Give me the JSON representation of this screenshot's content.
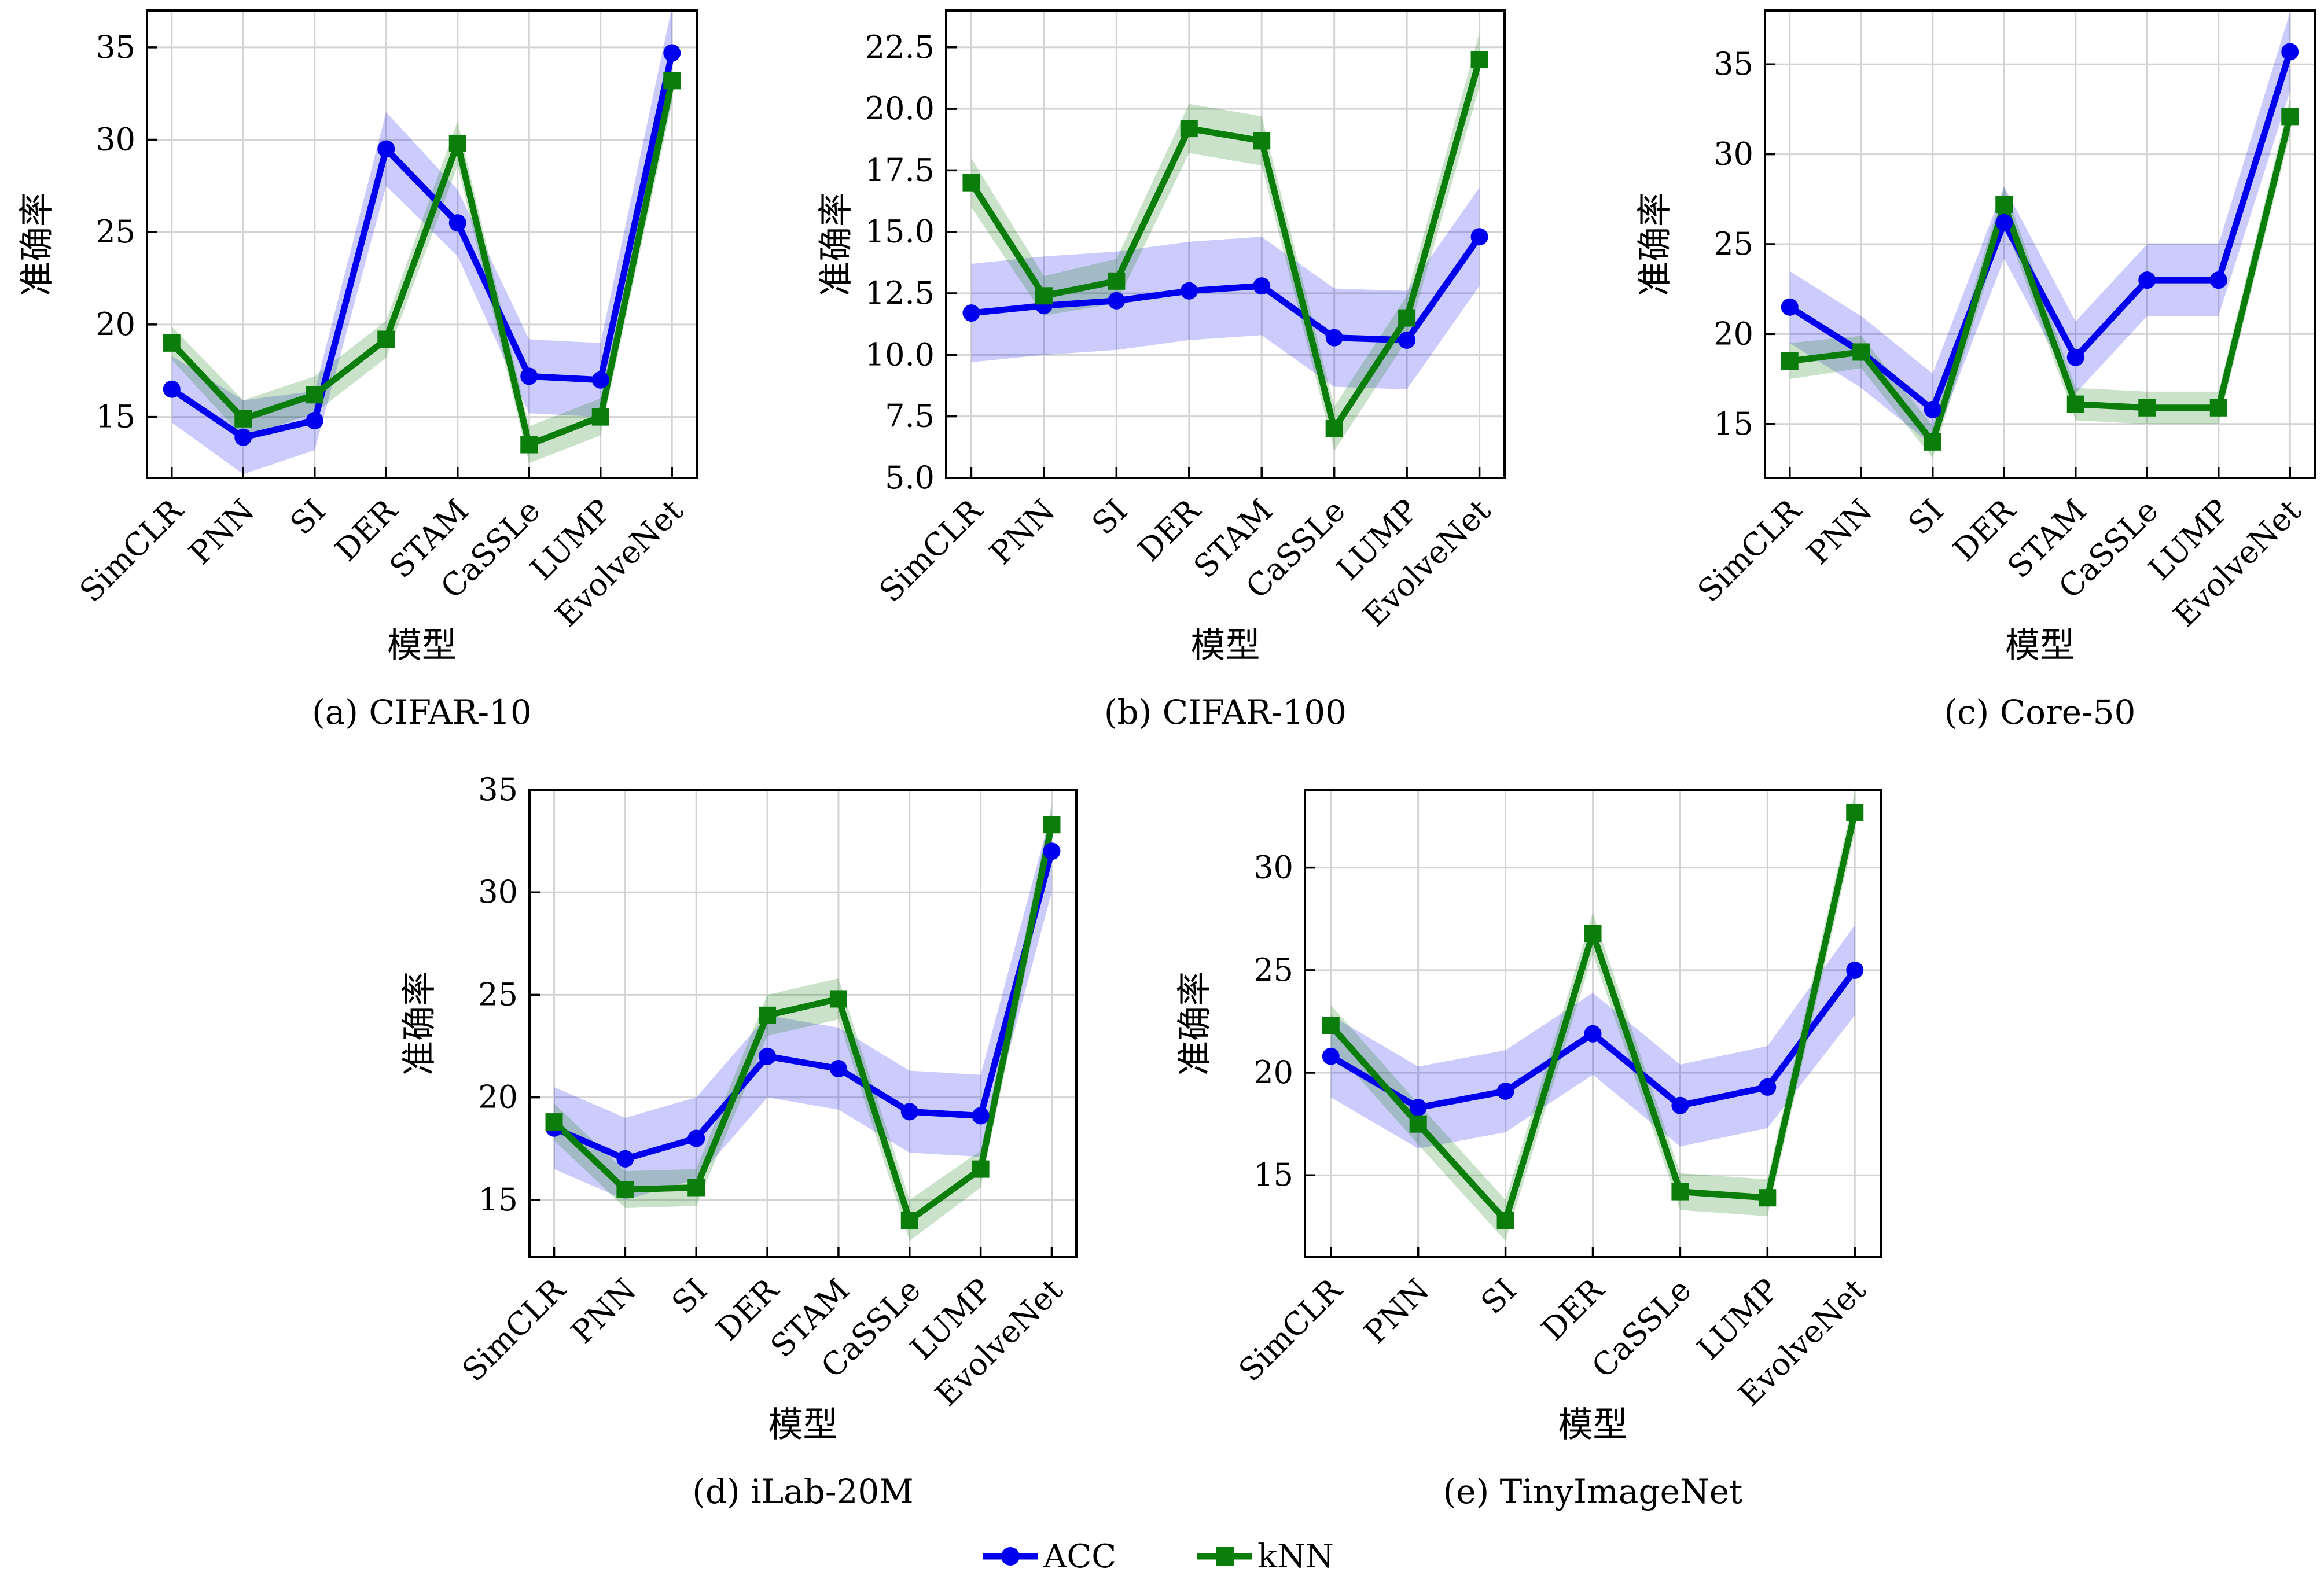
{
  "legend": [
    {
      "name": "ACC",
      "color": "#0000ee",
      "marker": "circle"
    },
    {
      "name": "kNN",
      "color": "#0a7d0a",
      "marker": "square"
    }
  ],
  "chart_data": [
    {
      "type": "line",
      "caption": "(a) CIFAR-10",
      "xlabel": "模型",
      "ylabel": "准确率",
      "categories": [
        "SimCLR",
        "PNN",
        "SI",
        "DER",
        "STAM",
        "CaSSLe",
        "LUMP",
        "EvolveNet"
      ],
      "ylim": [
        11.7,
        37.0
      ],
      "yticks": [
        15,
        20,
        25,
        30,
        35
      ],
      "ytick_labels": [
        "15",
        "20",
        "25",
        "30",
        "35"
      ],
      "grid": true,
      "series": [
        {
          "name": "ACC",
          "values": [
            16.5,
            13.9,
            14.8,
            29.5,
            25.5,
            17.2,
            17.0,
            34.7
          ],
          "band": [
            1.8,
            2.0,
            1.6,
            2.0,
            1.8,
            2.0,
            2.0,
            2.5
          ]
        },
        {
          "name": "kNN",
          "values": [
            19.0,
            14.9,
            16.2,
            19.2,
            29.8,
            13.5,
            15.0,
            33.2
          ],
          "band": [
            0.9,
            1.0,
            1.0,
            1.0,
            1.2,
            1.0,
            1.0,
            1.2
          ]
        }
      ]
    },
    {
      "type": "line",
      "caption": "(b) CIFAR-100",
      "xlabel": "模型",
      "ylabel": "准确率",
      "categories": [
        "SimCLR",
        "PNN",
        "SI",
        "DER",
        "STAM",
        "CaSSLe",
        "LUMP",
        "EvolveNet"
      ],
      "ylim": [
        5.0,
        24.0
      ],
      "yticks": [
        5.0,
        7.5,
        10.0,
        12.5,
        15.0,
        17.5,
        20.0,
        22.5
      ],
      "ytick_labels": [
        "5.0",
        "7.5",
        "10.0",
        "12.5",
        "15.0",
        "17.5",
        "20.0",
        "22.5"
      ],
      "grid": true,
      "series": [
        {
          "name": "ACC",
          "values": [
            11.7,
            12.0,
            12.2,
            12.6,
            12.8,
            10.7,
            10.6,
            14.8
          ],
          "band": [
            2.0,
            2.0,
            2.0,
            2.0,
            2.0,
            2.0,
            2.0,
            2.0
          ]
        },
        {
          "name": "kNN",
          "values": [
            17.0,
            12.4,
            13.0,
            19.2,
            18.7,
            7.0,
            11.5,
            22.0
          ],
          "band": [
            1.0,
            0.8,
            0.9,
            1.0,
            1.0,
            0.9,
            0.9,
            1.1
          ]
        }
      ]
    },
    {
      "type": "line",
      "caption": "(c) Core-50",
      "xlabel": "模型",
      "ylabel": "准确率",
      "categories": [
        "SimCLR",
        "PNN",
        "SI",
        "DER",
        "STAM",
        "CaSSLe",
        "LUMP",
        "EvolveNet"
      ],
      "ylim": [
        12.0,
        38.0
      ],
      "yticks": [
        15,
        20,
        25,
        30,
        35
      ],
      "ytick_labels": [
        "15",
        "20",
        "25",
        "30",
        "35"
      ],
      "grid": true,
      "series": [
        {
          "name": "ACC",
          "values": [
            21.5,
            19.0,
            15.8,
            26.2,
            18.7,
            23.0,
            23.0,
            35.7
          ],
          "band": [
            2.0,
            2.0,
            2.0,
            2.0,
            2.0,
            2.0,
            2.0,
            2.2
          ]
        },
        {
          "name": "kNN",
          "values": [
            18.5,
            19.0,
            14.0,
            27.2,
            16.1,
            15.9,
            15.9,
            32.1
          ],
          "band": [
            1.0,
            0.9,
            0.9,
            1.0,
            0.9,
            0.9,
            0.9,
            1.0
          ]
        }
      ]
    },
    {
      "type": "line",
      "caption": "(d) iLab-20M",
      "xlabel": "模型",
      "ylabel": "准确率",
      "categories": [
        "SimCLR",
        "PNN",
        "SI",
        "DER",
        "STAM",
        "CaSSLe",
        "LUMP",
        "EvolveNet"
      ],
      "ylim": [
        12.2,
        35.0
      ],
      "yticks": [
        15,
        20,
        25,
        30,
        35
      ],
      "ytick_labels": [
        "15",
        "20",
        "25",
        "30",
        "35"
      ],
      "grid": true,
      "series": [
        {
          "name": "ACC",
          "values": [
            18.5,
            17.0,
            18.0,
            22.0,
            21.4,
            19.3,
            19.1,
            32.0
          ],
          "band": [
            2.0,
            2.0,
            2.0,
            2.0,
            2.0,
            2.0,
            2.0,
            2.0
          ]
        },
        {
          "name": "kNN",
          "values": [
            18.8,
            15.5,
            15.6,
            24.0,
            24.8,
            14.0,
            16.5,
            33.3
          ],
          "band": [
            0.9,
            0.9,
            0.9,
            1.0,
            1.0,
            1.0,
            0.9,
            1.0
          ]
        }
      ]
    },
    {
      "type": "line",
      "caption": "(e) TinyImageNet",
      "xlabel": "模型",
      "ylabel": "准确率",
      "categories": [
        "SimCLR",
        "PNN",
        "SI",
        "DER",
        "CaSSLe",
        "LUMP",
        "EvolveNet"
      ],
      "ylim": [
        11.0,
        33.8
      ],
      "yticks": [
        15,
        20,
        25,
        30
      ],
      "ytick_labels": [
        "15",
        "20",
        "25",
        "30"
      ],
      "grid": true,
      "series": [
        {
          "name": "ACC",
          "values": [
            20.8,
            18.3,
            19.1,
            21.9,
            18.4,
            19.3,
            25.0
          ],
          "band": [
            2.0,
            2.0,
            2.0,
            2.0,
            2.0,
            2.0,
            2.2
          ]
        },
        {
          "name": "kNN",
          "values": [
            22.3,
            17.5,
            12.8,
            26.8,
            14.2,
            13.9,
            32.7
          ],
          "band": [
            1.0,
            1.0,
            1.0,
            1.0,
            0.9,
            0.9,
            1.0
          ]
        }
      ]
    }
  ]
}
